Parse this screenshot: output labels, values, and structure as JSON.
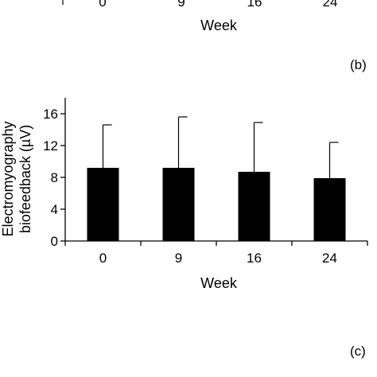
{
  "top_partial": {
    "tick_labels": [
      "0",
      "9",
      "16",
      "24"
    ],
    "xlabel": "Week",
    "panel_label": "(b)"
  },
  "chart_data": {
    "type": "bar",
    "categories": [
      "0",
      "9",
      "16",
      "24"
    ],
    "values": [
      9.2,
      9.2,
      8.7,
      7.9
    ],
    "error_upper": [
      5.4,
      6.4,
      6.2,
      4.5
    ],
    "title": "",
    "xlabel": "Week",
    "ylabel": [
      "Electromyography",
      "biofeedback (µV)"
    ],
    "ylim": [
      0,
      16
    ],
    "yticks": [
      0,
      4,
      8,
      12,
      16
    ],
    "grid": false,
    "bar_color": "#000000"
  },
  "panel_label_bottom": "(c)"
}
